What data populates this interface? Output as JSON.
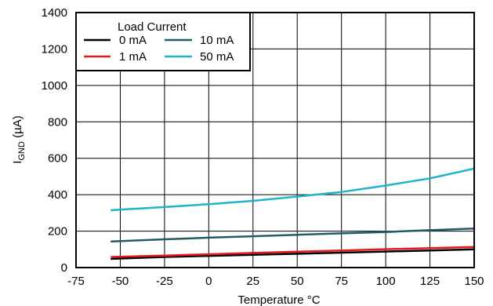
{
  "chart_data": {
    "type": "line",
    "xlabel": "Temperature °C",
    "ylabel_main": "I",
    "ylabel_sub": "GND",
    "ylabel_unit": " (µA)",
    "xlim": [
      -75,
      150
    ],
    "ylim": [
      0,
      1400
    ],
    "xticks": [
      -75,
      -50,
      -25,
      0,
      25,
      50,
      75,
      100,
      125,
      150
    ],
    "yticks": [
      0,
      200,
      400,
      600,
      800,
      1000,
      1200,
      1400
    ],
    "grid": true,
    "legend": {
      "title": "Load Current",
      "placement": "top-left"
    },
    "series": [
      {
        "name": "0 mA",
        "color": "#000000",
        "x": [
          -55,
          -25,
          0,
          25,
          50,
          75,
          100,
          125,
          150
        ],
        "y": [
          48,
          58,
          64,
          70,
          76,
          82,
          88,
          94,
          100
        ]
      },
      {
        "name": "10 mA",
        "color": "#1f5d63",
        "x": [
          -55,
          -25,
          0,
          25,
          50,
          75,
          100,
          125,
          150
        ],
        "y": [
          143,
          155,
          164,
          172,
          180,
          188,
          195,
          205,
          214
        ]
      },
      {
        "name": "1 mA",
        "color": "#e8191e",
        "x": [
          -55,
          -25,
          0,
          25,
          50,
          75,
          100,
          125,
          150
        ],
        "y": [
          58,
          66,
          73,
          80,
          87,
          94,
          101,
          107,
          113
        ]
      },
      {
        "name": "50 mA",
        "color": "#1fb3cc",
        "x": [
          -55,
          -25,
          0,
          25,
          50,
          75,
          100,
          125,
          150
        ],
        "y": [
          315,
          332,
          348,
          366,
          390,
          415,
          450,
          490,
          543
        ]
      }
    ]
  }
}
